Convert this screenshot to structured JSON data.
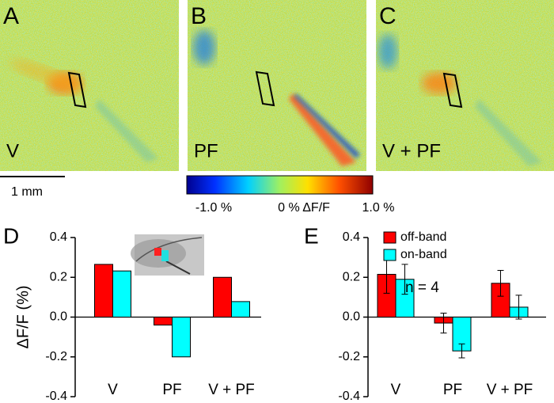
{
  "image_panels": [
    {
      "label": "A",
      "caption": "V"
    },
    {
      "label": "B",
      "caption": "PF"
    },
    {
      "label": "C",
      "caption": "V + PF"
    }
  ],
  "scale_bar": "1 mm",
  "colorbar": {
    "min_label": "-1.0 %",
    "mid_label": "0 % ΔF/F",
    "max_label": "1.0 %"
  },
  "chart_data": [
    {
      "type": "bar",
      "panel_label": "D",
      "y_label": "ΔF/F (%)",
      "categories": [
        "V",
        "PF",
        "V + PF"
      ],
      "series": [
        {
          "color": "#ff0000",
          "values": [
            0.265,
            -0.04,
            0.2
          ]
        },
        {
          "color": "#00ffff",
          "values": [
            0.232,
            -0.2,
            0.078
          ]
        }
      ],
      "ylim": [
        -0.4,
        0.4
      ],
      "yticks": [
        -0.4,
        -0.2,
        {
          "value": 0,
          "label": "0.0"
        },
        0.2,
        0.4
      ]
    },
    {
      "type": "bar",
      "panel_label": "E",
      "annotation": "n = 4",
      "categories": [
        "V",
        "PF",
        "V + PF"
      ],
      "series": [
        {
          "name": "off-band",
          "color": "#ff0000",
          "values": [
            0.215,
            -0.03,
            0.17
          ],
          "errors": [
            0.095,
            0.05,
            0.065
          ]
        },
        {
          "name": "on-band",
          "color": "#00ffff",
          "values": [
            0.19,
            -0.17,
            0.05
          ],
          "errors": [
            0.075,
            0.035,
            0.06
          ]
        }
      ],
      "ylim": [
        -0.4,
        0.4
      ],
      "yticks": [
        -0.4,
        -0.2,
        {
          "value": 0,
          "label": "0.0"
        },
        0.2,
        0.4
      ],
      "legend": "top"
    }
  ]
}
